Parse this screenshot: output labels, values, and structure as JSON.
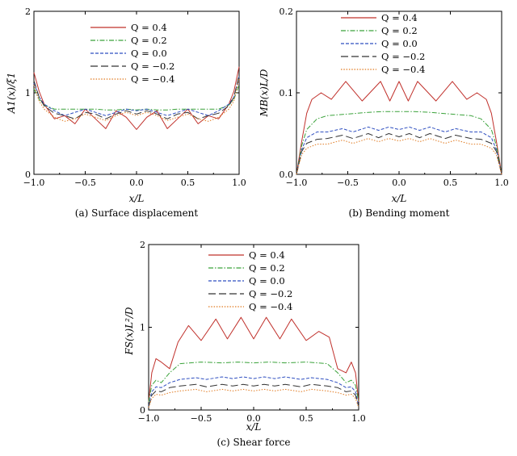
{
  "chart_data": [
    {
      "type": "line",
      "caption": "(a) Surface displacement",
      "xlabel": "x/L",
      "ylabel": "A1(x)/ξ1",
      "xlim": [
        -1.0,
        1.0
      ],
      "ylim": [
        0,
        2
      ],
      "xticks": [
        "−1.0",
        "−0.5",
        "0.0",
        "0.5",
        "1.0"
      ],
      "yticks": [
        "0",
        "1",
        "2"
      ],
      "legend_position": "top-center",
      "series": [
        {
          "name": "Q = 0.4",
          "color": "#c0302b",
          "dash": "solid",
          "x": [
            -1.0,
            -0.95,
            -0.9,
            -0.8,
            -0.7,
            -0.6,
            -0.5,
            -0.4,
            -0.3,
            -0.2,
            -0.1,
            0.0,
            0.1,
            0.2,
            0.3,
            0.4,
            0.5,
            0.6,
            0.7,
            0.8,
            0.9,
            0.95,
            1.0
          ],
          "y": [
            1.25,
            1.02,
            0.86,
            0.68,
            0.72,
            0.62,
            0.8,
            0.68,
            0.56,
            0.78,
            0.7,
            0.55,
            0.7,
            0.78,
            0.56,
            0.68,
            0.8,
            0.62,
            0.72,
            0.68,
            0.86,
            1.02,
            1.32
          ]
        },
        {
          "name": "Q = 0.2",
          "color": "#3aa23a",
          "dash": "dashdot",
          "x": [
            -1.0,
            -0.95,
            -0.9,
            -0.8,
            -0.7,
            -0.6,
            -0.5,
            -0.4,
            -0.3,
            -0.2,
            -0.1,
            0.0,
            0.1,
            0.2,
            0.3,
            0.4,
            0.5,
            0.6,
            0.7,
            0.8,
            0.9,
            0.95,
            1.0
          ],
          "y": [
            1.05,
            0.92,
            0.85,
            0.8,
            0.8,
            0.8,
            0.8,
            0.8,
            0.79,
            0.79,
            0.8,
            0.79,
            0.8,
            0.79,
            0.79,
            0.8,
            0.8,
            0.8,
            0.8,
            0.8,
            0.85,
            0.92,
            1.1
          ]
        },
        {
          "name": "Q = 0.0",
          "color": "#2f4fc0",
          "dash": "dashed",
          "x": [
            -1.0,
            -0.95,
            -0.9,
            -0.8,
            -0.7,
            -0.6,
            -0.5,
            -0.4,
            -0.3,
            -0.2,
            -0.1,
            0.0,
            0.1,
            0.2,
            0.3,
            0.4,
            0.5,
            0.6,
            0.7,
            0.8,
            0.9,
            0.95,
            1.0
          ],
          "y": [
            1.12,
            0.95,
            0.86,
            0.78,
            0.72,
            0.76,
            0.8,
            0.76,
            0.72,
            0.76,
            0.8,
            0.78,
            0.8,
            0.76,
            0.72,
            0.76,
            0.8,
            0.76,
            0.72,
            0.78,
            0.86,
            0.95,
            1.2
          ]
        },
        {
          "name": "Q = −0.2",
          "color": "#333333",
          "dash": "longdash",
          "x": [
            -1.0,
            -0.95,
            -0.9,
            -0.8,
            -0.7,
            -0.6,
            -0.5,
            -0.4,
            -0.3,
            -0.2,
            -0.1,
            0.0,
            0.1,
            0.2,
            0.3,
            0.4,
            0.5,
            0.6,
            0.7,
            0.8,
            0.9,
            0.95,
            1.0
          ],
          "y": [
            1.15,
            0.95,
            0.84,
            0.75,
            0.72,
            0.68,
            0.76,
            0.74,
            0.68,
            0.74,
            0.78,
            0.74,
            0.78,
            0.74,
            0.68,
            0.74,
            0.76,
            0.68,
            0.72,
            0.75,
            0.84,
            0.95,
            1.22
          ]
        },
        {
          "name": "Q = −0.4",
          "color": "#e07a20",
          "dash": "dotted",
          "x": [
            -1.0,
            -0.95,
            -0.9,
            -0.8,
            -0.7,
            -0.6,
            -0.5,
            -0.4,
            -0.3,
            -0.2,
            -0.1,
            0.0,
            0.1,
            0.2,
            0.3,
            0.4,
            0.5,
            0.6,
            0.7,
            0.8,
            0.9,
            0.95,
            1.0
          ],
          "y": [
            1.1,
            0.9,
            0.8,
            0.7,
            0.65,
            0.68,
            0.74,
            0.7,
            0.66,
            0.72,
            0.76,
            0.72,
            0.76,
            0.72,
            0.66,
            0.7,
            0.74,
            0.68,
            0.65,
            0.7,
            0.8,
            0.9,
            1.18
          ]
        }
      ]
    },
    {
      "type": "line",
      "caption": "(b) Bending moment",
      "xlabel": "x/L",
      "ylabel": "MB(x)L/D",
      "xlim": [
        -1.0,
        1.0
      ],
      "ylim": [
        0,
        0.2
      ],
      "xticks": [
        "−1.0",
        "−0.5",
        "0.0",
        "0.5",
        "1.0"
      ],
      "yticks": [
        "0.0",
        "0.1",
        "0.2"
      ],
      "legend_position": "top-center",
      "series": [
        {
          "name": "Q = 0.4",
          "color": "#c0302b",
          "dash": "solid",
          "x": [
            -1.0,
            -0.95,
            -0.9,
            -0.85,
            -0.76,
            -0.66,
            -0.52,
            -0.36,
            -0.18,
            -0.09,
            0.0,
            0.09,
            0.18,
            0.36,
            0.52,
            0.66,
            0.76,
            0.85,
            0.9,
            0.95,
            1.0
          ],
          "y": [
            0.0,
            0.04,
            0.075,
            0.092,
            0.1,
            0.092,
            0.114,
            0.09,
            0.114,
            0.09,
            0.114,
            0.09,
            0.114,
            0.09,
            0.114,
            0.092,
            0.1,
            0.092,
            0.075,
            0.04,
            0.0
          ]
        },
        {
          "name": "Q = 0.2",
          "color": "#3aa23a",
          "dash": "dashdot",
          "x": [
            -1.0,
            -0.95,
            -0.9,
            -0.8,
            -0.7,
            -0.5,
            -0.3,
            -0.15,
            0.0,
            0.15,
            0.3,
            0.5,
            0.7,
            0.8,
            0.9,
            0.95,
            1.0
          ],
          "y": [
            0.0,
            0.035,
            0.055,
            0.068,
            0.072,
            0.074,
            0.076,
            0.077,
            0.077,
            0.077,
            0.076,
            0.074,
            0.072,
            0.068,
            0.055,
            0.035,
            0.0
          ]
        },
        {
          "name": "Q = 0.0",
          "color": "#2f4fc0",
          "dash": "dashed",
          "x": [
            -1.0,
            -0.95,
            -0.9,
            -0.8,
            -0.7,
            -0.55,
            -0.45,
            -0.3,
            -0.2,
            -0.1,
            0.0,
            0.1,
            0.2,
            0.3,
            0.45,
            0.55,
            0.7,
            0.8,
            0.9,
            0.95,
            1.0
          ],
          "y": [
            0.0,
            0.03,
            0.045,
            0.052,
            0.052,
            0.056,
            0.052,
            0.058,
            0.054,
            0.058,
            0.055,
            0.058,
            0.054,
            0.058,
            0.052,
            0.056,
            0.052,
            0.052,
            0.045,
            0.03,
            0.0
          ]
        },
        {
          "name": "Q = −0.2",
          "color": "#333333",
          "dash": "longdash",
          "x": [
            -1.0,
            -0.95,
            -0.9,
            -0.8,
            -0.7,
            -0.55,
            -0.45,
            -0.3,
            -0.2,
            -0.1,
            0.0,
            0.1,
            0.2,
            0.3,
            0.45,
            0.55,
            0.7,
            0.8,
            0.9,
            0.95,
            1.0
          ],
          "y": [
            0.0,
            0.028,
            0.038,
            0.043,
            0.044,
            0.048,
            0.044,
            0.05,
            0.045,
            0.05,
            0.046,
            0.05,
            0.045,
            0.05,
            0.044,
            0.048,
            0.044,
            0.043,
            0.038,
            0.028,
            0.0
          ]
        },
        {
          "name": "Q = −0.4",
          "color": "#e07a20",
          "dash": "dotted",
          "x": [
            -1.0,
            -0.95,
            -0.9,
            -0.8,
            -0.7,
            -0.55,
            -0.45,
            -0.3,
            -0.2,
            -0.1,
            0.0,
            0.1,
            0.2,
            0.3,
            0.45,
            0.55,
            0.7,
            0.8,
            0.9,
            0.95,
            1.0
          ],
          "y": [
            0.0,
            0.024,
            0.032,
            0.037,
            0.037,
            0.042,
            0.038,
            0.044,
            0.04,
            0.044,
            0.041,
            0.044,
            0.04,
            0.044,
            0.038,
            0.042,
            0.037,
            0.037,
            0.032,
            0.024,
            0.0
          ]
        }
      ]
    },
    {
      "type": "line",
      "caption": "(c) Shear force",
      "xlabel": "x/L",
      "ylabel": "FS(x)L²/D",
      "xlim": [
        -1.0,
        1.0
      ],
      "ylim": [
        0,
        2
      ],
      "xticks": [
        "−1.0",
        "−0.5",
        "0.0",
        "0.5",
        "1.0"
      ],
      "yticks": [
        "0",
        "1",
        "2"
      ],
      "legend_position": "top-center",
      "series": [
        {
          "name": "Q = 0.4",
          "color": "#c0302b",
          "dash": "solid",
          "x": [
            -1.0,
            -0.97,
            -0.93,
            -0.88,
            -0.8,
            -0.72,
            -0.62,
            -0.5,
            -0.36,
            -0.25,
            -0.12,
            0.0,
            0.12,
            0.25,
            0.36,
            0.5,
            0.62,
            0.72,
            0.8,
            0.88,
            0.93,
            0.97,
            1.0
          ],
          "y": [
            0.1,
            0.45,
            0.62,
            0.58,
            0.5,
            0.82,
            1.02,
            0.84,
            1.1,
            0.86,
            1.12,
            0.86,
            1.12,
            0.86,
            1.1,
            0.84,
            0.95,
            0.88,
            0.5,
            0.45,
            0.58,
            0.45,
            0.1
          ]
        },
        {
          "name": "Q = 0.2",
          "color": "#3aa23a",
          "dash": "dashdot",
          "x": [
            -1.0,
            -0.97,
            -0.93,
            -0.88,
            -0.8,
            -0.7,
            -0.5,
            -0.3,
            -0.15,
            0.0,
            0.15,
            0.3,
            0.5,
            0.7,
            0.8,
            0.88,
            0.93,
            0.97,
            1.0
          ],
          "y": [
            0.1,
            0.3,
            0.36,
            0.33,
            0.45,
            0.56,
            0.58,
            0.57,
            0.58,
            0.57,
            0.58,
            0.57,
            0.58,
            0.56,
            0.45,
            0.33,
            0.36,
            0.3,
            0.1
          ]
        },
        {
          "name": "Q = 0.0",
          "color": "#2f4fc0",
          "dash": "dashed",
          "x": [
            -1.0,
            -0.97,
            -0.93,
            -0.88,
            -0.8,
            -0.7,
            -0.55,
            -0.45,
            -0.3,
            -0.2,
            -0.1,
            0.0,
            0.1,
            0.2,
            0.3,
            0.45,
            0.55,
            0.7,
            0.8,
            0.88,
            0.93,
            0.97,
            1.0
          ],
          "y": [
            0.05,
            0.22,
            0.28,
            0.27,
            0.33,
            0.37,
            0.39,
            0.37,
            0.4,
            0.38,
            0.4,
            0.38,
            0.4,
            0.38,
            0.4,
            0.37,
            0.39,
            0.37,
            0.33,
            0.27,
            0.28,
            0.22,
            0.05
          ]
        },
        {
          "name": "Q = −0.2",
          "color": "#333333",
          "dash": "longdash",
          "x": [
            -1.0,
            -0.97,
            -0.93,
            -0.88,
            -0.8,
            -0.7,
            -0.55,
            -0.45,
            -0.3,
            -0.2,
            -0.1,
            0.0,
            0.1,
            0.2,
            0.3,
            0.45,
            0.55,
            0.7,
            0.8,
            0.88,
            0.93,
            0.97,
            1.0
          ],
          "y": [
            0.04,
            0.18,
            0.23,
            0.22,
            0.27,
            0.29,
            0.31,
            0.28,
            0.31,
            0.29,
            0.31,
            0.29,
            0.31,
            0.29,
            0.31,
            0.28,
            0.31,
            0.29,
            0.27,
            0.22,
            0.23,
            0.18,
            0.04
          ]
        },
        {
          "name": "Q = −0.4",
          "color": "#e07a20",
          "dash": "dotted",
          "x": [
            -1.0,
            -0.97,
            -0.93,
            -0.88,
            -0.8,
            -0.7,
            -0.55,
            -0.45,
            -0.3,
            -0.2,
            -0.1,
            0.0,
            0.1,
            0.2,
            0.3,
            0.45,
            0.55,
            0.7,
            0.8,
            0.88,
            0.93,
            0.97,
            1.0
          ],
          "y": [
            0.03,
            0.14,
            0.19,
            0.18,
            0.21,
            0.23,
            0.25,
            0.22,
            0.25,
            0.23,
            0.25,
            0.23,
            0.25,
            0.23,
            0.25,
            0.22,
            0.25,
            0.23,
            0.21,
            0.18,
            0.19,
            0.14,
            0.03
          ]
        }
      ]
    }
  ]
}
